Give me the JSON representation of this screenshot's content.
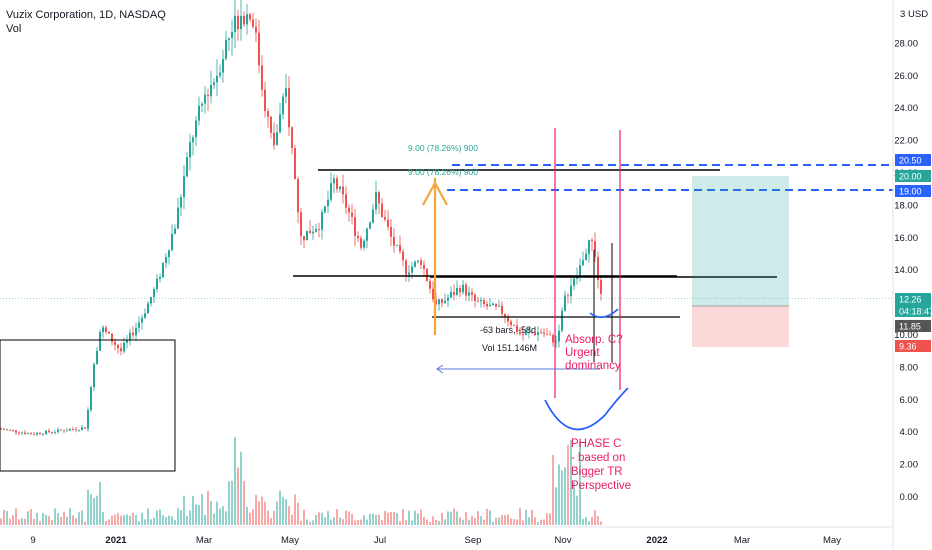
{
  "header": {
    "symbol_line": "Vuzix Corporation, 1D, NASDAQ",
    "volume_label": "Vol",
    "currency": "USD"
  },
  "chart_data": {
    "type": "candlestick",
    "y_ticks": [
      "28.00",
      "26.00",
      "24.00",
      "22.00",
      "20.00",
      "18.00",
      "16.00",
      "14.00",
      "12.00",
      "10.00",
      "8.00",
      "6.00",
      "4.00",
      "2.00",
      "0.00"
    ],
    "x_ticks": [
      "9",
      "2021",
      "Mar",
      "May",
      "Jul",
      "Sep",
      "Nov",
      "2022",
      "Mar",
      "May"
    ],
    "price_tags": [
      {
        "label": "20.50",
        "color": "#2962ff"
      },
      {
        "label": "20.00",
        "color": "#26a69a"
      },
      {
        "label": "19.00",
        "color": "#2962ff"
      },
      {
        "label": "12.26",
        "color": "#26a69a"
      },
      {
        "label": "04:18:47",
        "color": "#26a69a"
      },
      {
        "label": "11.85",
        "color": "#555555"
      },
      {
        "label": "9.36",
        "color": "#ef5350"
      }
    ],
    "last_price": 12.26,
    "annotations": {
      "fib_label_1": "9.00 (78.26%) 900",
      "fib_label_2": "9.00 (78.26%) 900",
      "range_bars": "-63 bars, -58d",
      "range_vol": "Vol 151.146M",
      "absorp_line1": "Absorp.  C?",
      "absorp_line2": "Urgent",
      "absorp_line3": "dominancy",
      "phase_line1": "PHASE C",
      "phase_line2": "- based on",
      "phase_line3": "Bigger TR",
      "phase_line4": "Perspective"
    },
    "colors": {
      "up": "#26a69a",
      "down": "#ef5350",
      "annotation": "#e91e63",
      "blue": "#2962ff",
      "orange": "#f7a43a"
    }
  }
}
